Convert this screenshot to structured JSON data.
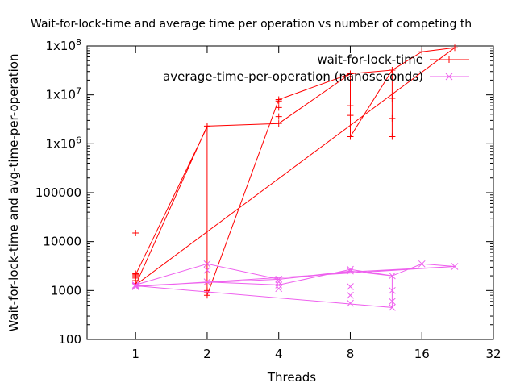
{
  "chart_data": {
    "type": "line",
    "title": "Wait-for-lock-time and average time per operation vs number of competing th",
    "xlabel": "Threads",
    "ylabel": "Wait-for-lock-time and avg-time-per-operation",
    "x_scale": "log2",
    "y_scale": "log10",
    "xlim": [
      0.625,
      32
    ],
    "ylim": [
      100,
      100000000
    ],
    "x_ticks": [
      1,
      2,
      4,
      8,
      16,
      32
    ],
    "x_tick_labels": [
      "1",
      "2",
      "4",
      "8",
      "16",
      "32"
    ],
    "y_ticks": [
      100,
      1000,
      10000,
      100000,
      1000000,
      10000000,
      100000000
    ],
    "y_tick_labels": [
      "100",
      "1000",
      "10000",
      "100000",
      "1x10^6",
      "1x10^7",
      "1x10^8"
    ],
    "legend_position": "top-right",
    "series": [
      {
        "name": "wait-for-lock-time",
        "color": "#ff0000",
        "marker": "plus",
        "points": [
          [
            1,
            15000
          ],
          [
            1,
            2200
          ],
          [
            1,
            2000
          ],
          [
            1,
            1800
          ],
          [
            1,
            1600
          ],
          [
            1,
            1400
          ],
          [
            1,
            2100
          ],
          [
            2,
            2200000
          ],
          [
            2,
            2300000
          ],
          [
            2,
            900
          ],
          [
            2,
            800
          ],
          [
            2,
            1000
          ],
          [
            4,
            8000000
          ],
          [
            4,
            7500000
          ],
          [
            4,
            5500000
          ],
          [
            4,
            3600000
          ],
          [
            4,
            2600000
          ],
          [
            8,
            27000000
          ],
          [
            8,
            6000000
          ],
          [
            8,
            3800000
          ],
          [
            8,
            1400000
          ],
          [
            12,
            32000000
          ],
          [
            12,
            8500000
          ],
          [
            12,
            3300000
          ],
          [
            12,
            1400000
          ],
          [
            16,
            76000000
          ],
          [
            22,
            92000000
          ]
        ],
        "path": [
          [
            1,
            2100
          ],
          [
            2,
            2200000
          ],
          [
            2,
            800
          ],
          [
            4,
            8000000
          ],
          [
            8,
            27000000
          ],
          [
            8,
            1400000
          ],
          [
            12,
            32000000
          ],
          [
            16,
            76000000
          ],
          [
            22,
            92000000
          ],
          [
            1,
            1300
          ],
          [
            2,
            2300000
          ],
          [
            4,
            2600000
          ],
          [
            8,
            27000000
          ],
          [
            12,
            32000000
          ],
          [
            12,
            1400000
          ]
        ]
      },
      {
        "name": "average-time-per-operation (nanoseconds)",
        "color": "#ee60ee",
        "marker": "cross",
        "points": [
          [
            1,
            1300
          ],
          [
            1,
            1250
          ],
          [
            1,
            1200
          ],
          [
            2,
            3500
          ],
          [
            2,
            2600
          ],
          [
            2,
            1500
          ],
          [
            4,
            1700
          ],
          [
            4,
            1500
          ],
          [
            4,
            1300
          ],
          [
            4,
            1100
          ],
          [
            8,
            2700
          ],
          [
            8,
            2500
          ],
          [
            8,
            1200
          ],
          [
            8,
            800
          ],
          [
            8,
            550
          ],
          [
            12,
            2000
          ],
          [
            12,
            1000
          ],
          [
            12,
            600
          ],
          [
            12,
            450
          ],
          [
            16,
            3500
          ],
          [
            22,
            3100
          ]
        ],
        "path": [
          [
            1,
            1300
          ],
          [
            2,
            3500
          ],
          [
            4,
            1700
          ],
          [
            8,
            2500
          ],
          [
            12,
            2000
          ],
          [
            16,
            3500
          ],
          [
            22,
            3100
          ],
          [
            1,
            1200
          ],
          [
            2,
            1500
          ],
          [
            4,
            1300
          ],
          [
            8,
            2700
          ],
          [
            12,
            2000
          ],
          [
            12,
            450
          ],
          [
            1,
            1250
          ],
          [
            4,
            1700
          ],
          [
            8,
            2400
          ],
          [
            22,
            3100
          ]
        ]
      }
    ]
  }
}
